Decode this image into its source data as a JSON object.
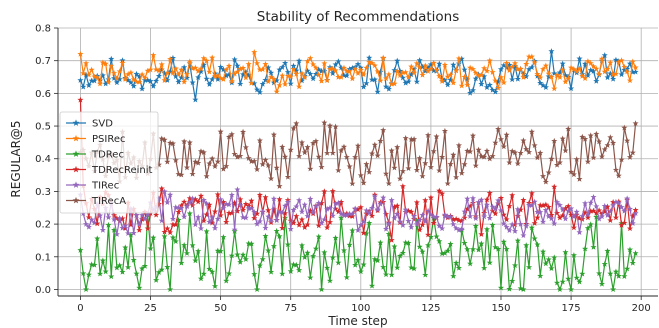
{
  "chart_data": {
    "type": "line",
    "title": "Stability of Recommendations",
    "xlabel": "Time step",
    "ylabel": "REGULAR@5",
    "xlim": [
      -8,
      206
    ],
    "ylim": [
      -0.02,
      0.8
    ],
    "xticks": [
      0,
      25,
      50,
      75,
      100,
      125,
      150,
      175,
      200
    ],
    "yticks": [
      0.0,
      0.1,
      0.2,
      0.3,
      0.4,
      0.5,
      0.6,
      0.7,
      0.8
    ],
    "grid": true,
    "legend_position": "left",
    "series": [
      {
        "name": "SVD",
        "color": "#1f77b4",
        "base": 0.655,
        "amp": 0.04,
        "first": 0.64,
        "seed": 11
      },
      {
        "name": "PSIRec",
        "color": "#ff7f0e",
        "base": 0.668,
        "amp": 0.035,
        "first": 0.72,
        "seed": 23
      },
      {
        "name": "TDRec",
        "color": "#2ca02c",
        "base": 0.1,
        "amp": 0.09,
        "first": 0.12,
        "seed": 37
      },
      {
        "name": "TDRecReinit",
        "color": "#d62728",
        "base": 0.24,
        "amp": 0.05,
        "first": 0.58,
        "seed": 51
      },
      {
        "name": "TIRec",
        "color": "#9467bd",
        "base": 0.235,
        "amp": 0.045,
        "first": 0.29,
        "seed": 67
      },
      {
        "name": "TIRecA",
        "color": "#8c564b",
        "base": 0.415,
        "amp": 0.07,
        "first": 0.42,
        "seed": 79
      }
    ],
    "n_points": 199
  }
}
